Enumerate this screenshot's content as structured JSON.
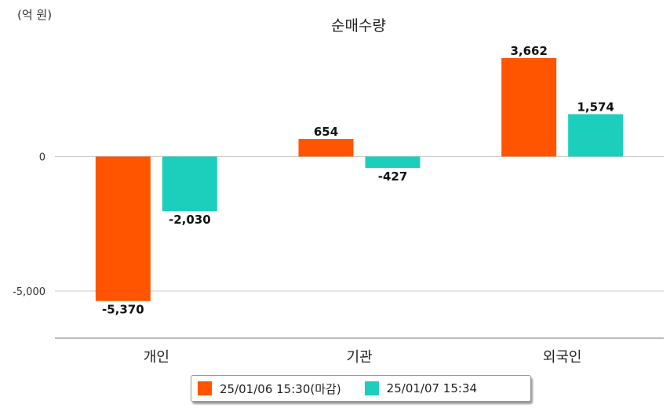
{
  "unit_label": "(억 원)",
  "chart_data": {
    "type": "bar",
    "title": "순매수량",
    "categories": [
      "개인",
      "기관",
      "외국인"
    ],
    "series": [
      {
        "name": "25/01/06 15:30(마감)",
        "color": "#ff5500",
        "values": [
          -5370,
          654,
          3662
        ],
        "labels": [
          "-5,370",
          "654",
          "3,662"
        ]
      },
      {
        "name": "25/01/07 15:34",
        "color": "#1ccfbc",
        "values": [
          -2030,
          -427,
          1574
        ],
        "labels": [
          "-2,030",
          "-427",
          "1,574"
        ]
      }
    ],
    "ylim": [
      -6750,
      4650
    ],
    "yticks": [
      0,
      -5000
    ],
    "ytick_labels": [
      "0",
      "-5,000"
    ],
    "grid": true,
    "legend_position": "bottom"
  }
}
